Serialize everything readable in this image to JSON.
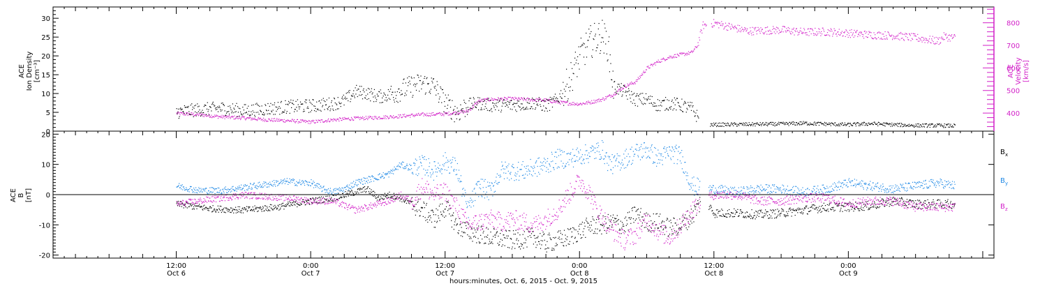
{
  "chart_data": [
    {
      "type": "scatter",
      "panel": "top",
      "left_axis": {
        "label_lines": [
          "ACE",
          "Ion Density",
          "[cm⁻³]"
        ],
        "ylim": [
          0,
          33
        ],
        "ticks": [
          "0",
          "5",
          "10",
          "15",
          "20",
          "25",
          "30"
        ]
      },
      "right_axis": {
        "label_lines": [
          "ACE",
          "Velocity",
          "[km/s]"
        ],
        "ylim": [
          320,
          870
        ],
        "ticks": [
          "400",
          "500",
          "600",
          "700",
          "800"
        ]
      },
      "colors": {
        "density": "#000000",
        "velocity": "#d21fc8"
      },
      "series": [
        {
          "axis": "left",
          "values": [
            [
              0,
              5.2
            ],
            [
              2,
              5.8
            ],
            [
              4,
              6.2
            ],
            [
              6,
              5.5
            ],
            [
              8,
              6.0
            ],
            [
              10,
              6.6
            ],
            [
              12,
              6.8
            ],
            [
              14,
              7.4
            ],
            [
              15,
              8.2
            ],
            [
              16,
              10.6
            ],
            [
              17,
              10.2
            ],
            [
              18,
              9.2
            ],
            [
              19,
              9.8
            ],
            [
              20,
              11.0
            ],
            [
              21,
              12.0
            ],
            [
              22,
              12.8
            ],
            [
              23,
              12.0
            ],
            [
              24,
              7.5
            ],
            [
              25,
              5.0
            ],
            [
              26,
              7.0
            ],
            [
              27,
              7.5
            ],
            [
              28,
              7.0
            ],
            [
              30,
              7.0
            ],
            [
              32,
              7.6
            ],
            [
              33,
              6.8
            ],
            [
              34,
              8.5
            ],
            [
              35,
              13.0
            ],
            [
              36,
              20.0
            ],
            [
              37,
              24.0
            ],
            [
              38,
              25.5
            ],
            [
              38.5,
              23.0
            ],
            [
              39,
              12.0
            ],
            [
              40,
              10.5
            ],
            [
              41,
              8.5
            ],
            [
              42,
              8.5
            ],
            [
              43,
              7.0
            ],
            [
              44,
              7.5
            ],
            [
              45,
              7.0
            ],
            [
              46,
              6.0
            ],
            [
              47,
              1.8
            ],
            [
              48,
              1.8
            ],
            [
              51,
              1.9
            ],
            [
              54,
              2.0
            ],
            [
              56,
              2.2
            ],
            [
              58,
              2.0
            ],
            [
              60,
              1.8
            ],
            [
              62,
              2.1
            ],
            [
              64,
              1.8
            ],
            [
              66,
              1.6
            ],
            [
              68,
              1.6
            ],
            [
              69.5,
              1.5
            ]
          ]
        },
        {
          "axis": "right",
          "values": [
            [
              0,
              400
            ],
            [
              2,
              395
            ],
            [
              4,
              385
            ],
            [
              6,
              380
            ],
            [
              8,
              372
            ],
            [
              10,
              368
            ],
            [
              12,
              362
            ],
            [
              14,
              372
            ],
            [
              16,
              378
            ],
            [
              18,
              382
            ],
            [
              20,
              388
            ],
            [
              22,
              395
            ],
            [
              24,
              398
            ],
            [
              26,
              410
            ],
            [
              27,
              455
            ],
            [
              28,
              462
            ],
            [
              30,
              465
            ],
            [
              32,
              460
            ],
            [
              33,
              458
            ],
            [
              34,
              450
            ],
            [
              35,
              445
            ],
            [
              36,
              442
            ],
            [
              37,
              450
            ],
            [
              38,
              462
            ],
            [
              39,
              485
            ],
            [
              40,
              520
            ],
            [
              41,
              540
            ],
            [
              42,
              600
            ],
            [
              43,
              630
            ],
            [
              44,
              650
            ],
            [
              45,
              660
            ],
            [
              46,
              670
            ],
            [
              46.5,
              700
            ],
            [
              47,
              790
            ],
            [
              48,
              800
            ],
            [
              51,
              765
            ],
            [
              54,
              770
            ],
            [
              56,
              760
            ],
            [
              58,
              762
            ],
            [
              60,
              755
            ],
            [
              62,
              748
            ],
            [
              64,
              745
            ],
            [
              66,
              735
            ],
            [
              68,
              720
            ],
            [
              68.5,
              740
            ],
            [
              69.5,
              735
            ]
          ]
        }
      ]
    },
    {
      "type": "scatter",
      "panel": "bottom",
      "left_axis": {
        "label_lines": [
          "ACE",
          "B",
          "[nT]"
        ],
        "ylim": [
          -21,
          21
        ],
        "ticks": [
          "-20",
          "-10",
          "0",
          "10",
          "20"
        ]
      },
      "zero_line": true,
      "legend": {
        "position": "right",
        "items": [
          {
            "base": "B",
            "sub": "x"
          },
          {
            "base": "B",
            "sub": "y"
          },
          {
            "base": "B",
            "sub": "z"
          }
        ]
      },
      "colors": {
        "Bx": "#000000",
        "By": "#1e88e5",
        "Bz": "#d21fc8"
      },
      "series": [
        {
          "name": "B",
          "sub": "x",
          "values": [
            [
              0,
              -3
            ],
            [
              3,
              -4.5
            ],
            [
              6,
              -5
            ],
            [
              9,
              -4
            ],
            [
              12,
              -2
            ],
            [
              14,
              -1
            ],
            [
              16,
              1
            ],
            [
              17,
              2
            ],
            [
              18,
              -1
            ],
            [
              19,
              0
            ],
            [
              20,
              -1
            ],
            [
              21,
              -3
            ],
            [
              22,
              -5
            ],
            [
              23,
              -8
            ],
            [
              24,
              -4
            ],
            [
              25,
              -10
            ],
            [
              26,
              -12
            ],
            [
              27,
              -13
            ],
            [
              28,
              -14
            ],
            [
              30,
              -15
            ],
            [
              32,
              -14
            ],
            [
              33,
              -16
            ],
            [
              34,
              -15
            ],
            [
              35,
              -14
            ],
            [
              36,
              -12
            ],
            [
              37,
              -10
            ],
            [
              38,
              -10
            ],
            [
              39,
              -9
            ],
            [
              40,
              -10
            ],
            [
              41,
              -6
            ],
            [
              42,
              -9
            ],
            [
              43,
              -9
            ],
            [
              44,
              -11
            ],
            [
              45,
              -10
            ],
            [
              46,
              -7
            ],
            [
              47,
              -1
            ],
            [
              48,
              -6
            ],
            [
              50,
              -6
            ],
            [
              52,
              -6.5
            ],
            [
              54,
              -6
            ],
            [
              56,
              -5
            ],
            [
              58,
              -4
            ],
            [
              60,
              -4
            ],
            [
              62,
              -3.5
            ],
            [
              64,
              -2
            ],
            [
              66,
              -3
            ],
            [
              68,
              -3
            ],
            [
              69.5,
              -3
            ]
          ]
        },
        {
          "name": "B",
          "sub": "y",
          "values": [
            [
              0,
              3
            ],
            [
              2,
              1.5
            ],
            [
              4,
              1.5
            ],
            [
              6,
              2.5
            ],
            [
              8,
              3.5
            ],
            [
              10,
              4.5
            ],
            [
              11,
              4
            ],
            [
              12,
              4
            ],
            [
              13,
              2
            ],
            [
              14,
              1
            ],
            [
              15,
              2
            ],
            [
              16,
              4
            ],
            [
              17,
              5
            ],
            [
              18,
              6
            ],
            [
              19,
              7
            ],
            [
              20,
              10
            ],
            [
              21,
              9
            ],
            [
              22,
              10
            ],
            [
              23,
              8
            ],
            [
              24,
              11
            ],
            [
              25,
              9
            ],
            [
              26,
              -5
            ],
            [
              27,
              3
            ],
            [
              28,
              1
            ],
            [
              29,
              8
            ],
            [
              30,
              8
            ],
            [
              31,
              8
            ],
            [
              32,
              9
            ],
            [
              33,
              10
            ],
            [
              34,
              12
            ],
            [
              35,
              12
            ],
            [
              36,
              13
            ],
            [
              37,
              14
            ],
            [
              38,
              15
            ],
            [
              38.5,
              11
            ],
            [
              39,
              10
            ],
            [
              40,
              12
            ],
            [
              41,
              14
            ],
            [
              42,
              15
            ],
            [
              43,
              12
            ],
            [
              44,
              14
            ],
            [
              45,
              13
            ],
            [
              46,
              3
            ],
            [
              47,
              2
            ],
            [
              48,
              2
            ],
            [
              50,
              1
            ],
            [
              52,
              2
            ],
            [
              54,
              2
            ],
            [
              56,
              1
            ],
            [
              58,
              2
            ],
            [
              60,
              4
            ],
            [
              62,
              3
            ],
            [
              64,
              2
            ],
            [
              66,
              3
            ],
            [
              68,
              4
            ],
            [
              69.5,
              3
            ]
          ]
        },
        {
          "name": "B",
          "sub": "z",
          "values": [
            [
              0,
              -3
            ],
            [
              2,
              -2
            ],
            [
              4,
              -1
            ],
            [
              6,
              0
            ],
            [
              8,
              -0.5
            ],
            [
              10,
              -1
            ],
            [
              12,
              -2
            ],
            [
              14,
              -2
            ],
            [
              16,
              -5
            ],
            [
              17,
              -4
            ],
            [
              18,
              -3
            ],
            [
              19,
              -2
            ],
            [
              20,
              0
            ],
            [
              21,
              -2
            ],
            [
              22,
              3
            ],
            [
              23,
              0
            ],
            [
              24,
              1
            ],
            [
              25,
              -4
            ],
            [
              26,
              -10
            ],
            [
              27,
              -9
            ],
            [
              28,
              -8
            ],
            [
              29,
              -9
            ],
            [
              30,
              -8
            ],
            [
              31,
              -9
            ],
            [
              32,
              -10
            ],
            [
              33,
              -8
            ],
            [
              34,
              -5
            ],
            [
              35,
              0
            ],
            [
              36,
              5
            ],
            [
              37,
              0
            ],
            [
              37.5,
              -5
            ],
            [
              38,
              -7
            ],
            [
              38.5,
              -10
            ],
            [
              39,
              -12
            ],
            [
              40,
              -15
            ],
            [
              41,
              -13
            ],
            [
              42,
              -8
            ],
            [
              43,
              -12
            ],
            [
              44,
              -14
            ],
            [
              45,
              -10
            ],
            [
              46,
              -5
            ],
            [
              47,
              -1
            ],
            [
              48,
              0
            ],
            [
              50,
              0
            ],
            [
              52,
              -2
            ],
            [
              54,
              -2
            ],
            [
              56,
              -1
            ],
            [
              58,
              -1
            ],
            [
              60,
              -3
            ],
            [
              62,
              -2
            ],
            [
              64,
              -2
            ],
            [
              66,
              -4
            ],
            [
              68,
              -4
            ],
            [
              69.5,
              -4
            ]
          ]
        }
      ]
    }
  ],
  "x_axis": {
    "xlim": [
      -11,
      73
    ],
    "major_ticks": [
      {
        "x": 0,
        "time": "12:00",
        "date": "Oct 6"
      },
      {
        "x": 12,
        "time": "0:00",
        "date": "Oct 7"
      },
      {
        "x": 24,
        "time": "12:00",
        "date": "Oct 7"
      },
      {
        "x": 36,
        "time": "0:00",
        "date": "Oct 8"
      },
      {
        "x": 48,
        "time": "12:00",
        "date": "Oct 8"
      },
      {
        "x": 60,
        "time": "0:00",
        "date": "Oct 9"
      }
    ],
    "title": "hours:minutes, Oct.  6, 2015 - Oct.  9, 2015"
  }
}
